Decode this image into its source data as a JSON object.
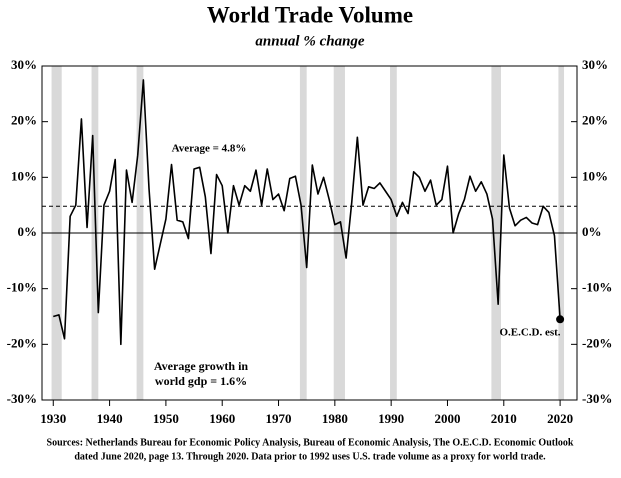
{
  "chart_data": {
    "type": "line",
    "title": "World Trade Volume",
    "subtitle": "annual % change",
    "annotations": [
      "Average = 4.8%",
      "O.E.C.D. est.",
      "Average growth in",
      "world gdp = 1.6%"
    ],
    "source": [
      "Sources:  Netherlands Bureau for Economic Policy Analysis, Bureau of Economic Analysis, The O.E.C.D. Economic Outlook",
      "dated June 2020, page 13. Through 2020.  Data prior to 1992 uses U.S. trade volume as a proxy for world trade."
    ],
    "average": 4.8,
    "x": [
      1930,
      1931,
      1932,
      1933,
      1934,
      1935,
      1936,
      1937,
      1938,
      1939,
      1940,
      1941,
      1942,
      1943,
      1944,
      1945,
      1946,
      1947,
      1948,
      1949,
      1950,
      1951,
      1952,
      1953,
      1954,
      1955,
      1956,
      1957,
      1958,
      1959,
      1960,
      1961,
      1962,
      1963,
      1964,
      1965,
      1966,
      1967,
      1968,
      1969,
      1970,
      1971,
      1972,
      1973,
      1974,
      1975,
      1976,
      1977,
      1978,
      1979,
      1980,
      1981,
      1982,
      1983,
      1984,
      1985,
      1986,
      1987,
      1988,
      1989,
      1990,
      1991,
      1992,
      1993,
      1994,
      1995,
      1996,
      1997,
      1998,
      1999,
      2000,
      2001,
      2002,
      2003,
      2004,
      2005,
      2006,
      2007,
      2008,
      2009,
      2010,
      2011,
      2012,
      2013,
      2014,
      2015,
      2016,
      2017,
      2018,
      2019,
      2020
    ],
    "series": [
      {
        "color": "#000000",
        "values": [
          -15,
          -14.7,
          -19,
          3,
          5,
          20.5,
          1,
          17.5,
          -14.3,
          5,
          7.5,
          13.2,
          -20,
          11.3,
          5.5,
          14,
          27.5,
          8,
          -6.5,
          -2,
          2.5,
          12.3,
          2.3,
          2,
          -1,
          11.5,
          11.8,
          6.5,
          -3.7,
          10.5,
          8.5,
          0,
          8.5,
          5,
          8.5,
          7.5,
          11.3,
          5,
          11.5,
          6,
          7,
          4,
          9.8,
          10.2,
          5,
          -6.2,
          12.2,
          7,
          10,
          6,
          1.5,
          2,
          -4.5,
          5.5,
          17.2,
          5,
          8.3,
          8,
          9,
          7.5,
          6,
          3,
          5.5,
          3.5,
          11,
          10,
          7.5,
          9.5,
          5,
          6,
          12,
          0,
          3.5,
          6,
          10.2,
          7.5,
          9.2,
          7,
          2.5,
          -12.8,
          14,
          4.5,
          1.3,
          2.3,
          2.8,
          1.8,
          1.5,
          4.8,
          3.7,
          -0.5,
          -15.5
        ]
      }
    ],
    "shaded_periods": [
      [
        1929.7,
        1931.5
      ],
      [
        1936.8,
        1938
      ],
      [
        1944.8,
        1946
      ],
      [
        1973.8,
        1975
      ],
      [
        1979.8,
        1981.8
      ],
      [
        1989.8,
        1991
      ],
      [
        2007.8,
        2009.5
      ],
      [
        2019.7,
        2020.7
      ]
    ],
    "xlim": [
      1928,
      2023
    ],
    "xticks": [
      1930,
      1940,
      1950,
      1960,
      1970,
      1980,
      1990,
      2000,
      2010,
      2020
    ],
    "ylim": [
      -30,
      30
    ],
    "yticks": [
      {
        "value": 30,
        "label": "30%"
      },
      {
        "value": 20,
        "label": "20%"
      },
      {
        "value": 10,
        "label": "10%"
      },
      {
        "value": 0,
        "label": "0%"
      },
      {
        "value": -10,
        "label": "-10%"
      },
      {
        "value": -20,
        "label": "-20%"
      },
      {
        "value": -30,
        "label": "-30%"
      }
    ],
    "y2lim": [
      -30,
      30
    ],
    "y2ticks": [
      {
        "value": 30,
        "label": "30%"
      },
      {
        "value": 20,
        "label": "20%"
      },
      {
        "value": 10,
        "label": "10%"
      },
      {
        "value": 0,
        "label": "0%"
      },
      {
        "value": -10,
        "label": "-10%"
      },
      {
        "value": -20,
        "label": "-20%"
      },
      {
        "value": -30,
        "label": "-30%"
      }
    ]
  }
}
